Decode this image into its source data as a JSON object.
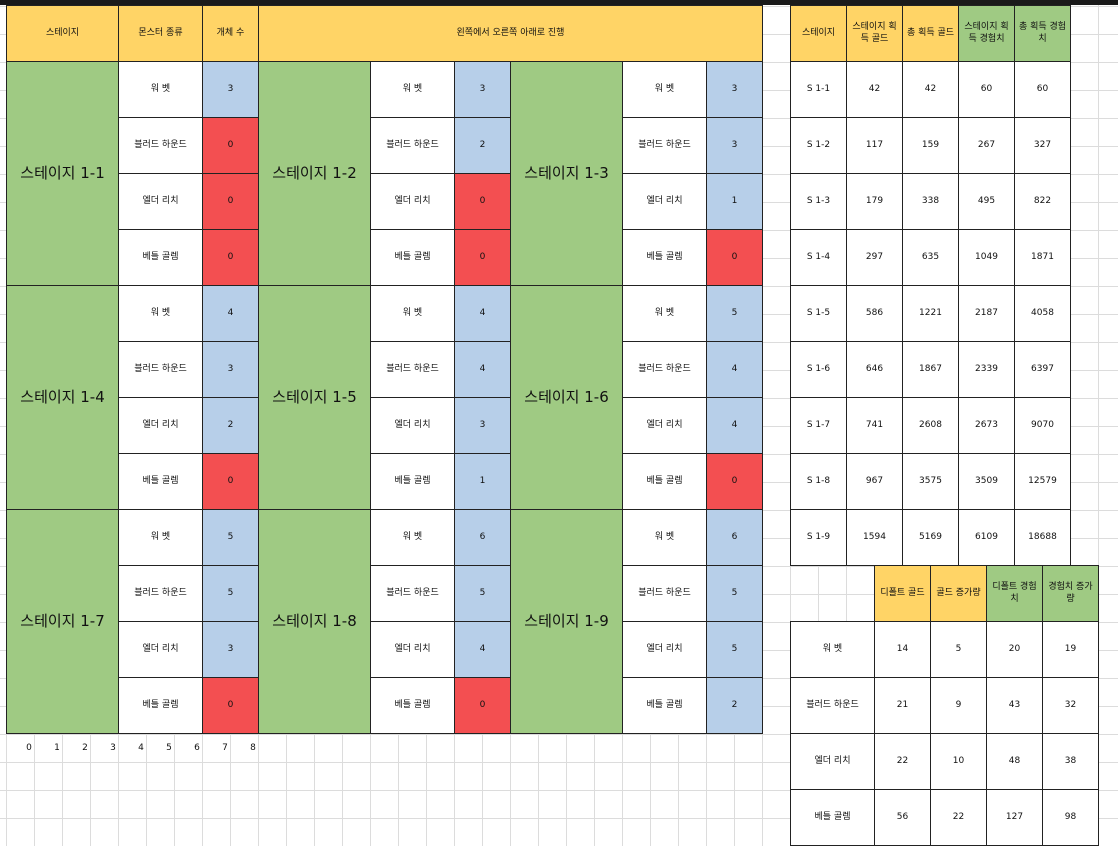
{
  "header": {
    "stage": "스테이지",
    "monster_type": "몬스터 종류",
    "count": "개체 수",
    "progression": "왼쪽에서 오른쪽 아래로 진행"
  },
  "stages": [
    {
      "name": "스테이지 1-1",
      "counts": [
        3,
        0,
        0,
        0
      ]
    },
    {
      "name": "스테이지 1-2",
      "counts": [
        3,
        2,
        0,
        0
      ]
    },
    {
      "name": "스테이지 1-3",
      "counts": [
        3,
        3,
        1,
        0
      ]
    },
    {
      "name": "스테이지 1-4",
      "counts": [
        4,
        3,
        2,
        0
      ]
    },
    {
      "name": "스테이지 1-5",
      "counts": [
        4,
        4,
        3,
        1
      ]
    },
    {
      "name": "스테이지 1-6",
      "counts": [
        5,
        4,
        4,
        0
      ]
    },
    {
      "name": "스테이지 1-7",
      "counts": [
        5,
        5,
        3,
        0
      ]
    },
    {
      "name": "스테이지 1-8",
      "counts": [
        6,
        5,
        4,
        0
      ]
    },
    {
      "name": "스테이지 1-9",
      "counts": [
        6,
        5,
        5,
        2
      ]
    }
  ],
  "monsters": [
    "워 벳",
    "블러드 하운드",
    "엘더 리치",
    "베틀 골렘"
  ],
  "column_numbers": [
    "0",
    "1",
    "2",
    "3",
    "4",
    "5",
    "6",
    "7",
    "8"
  ],
  "summary": {
    "headers": [
      "스테이지",
      "스테이지 획득 골드",
      "총 획득 골드",
      "스테이지 획득 경험치",
      "총 획득 경험치"
    ],
    "rows": [
      [
        "S 1-1",
        "42",
        "42",
        "60",
        "60"
      ],
      [
        "S 1-2",
        "117",
        "159",
        "267",
        "327"
      ],
      [
        "S 1-3",
        "179",
        "338",
        "495",
        "822"
      ],
      [
        "S 1-4",
        "297",
        "635",
        "1049",
        "1871"
      ],
      [
        "S 1-5",
        "586",
        "1221",
        "2187",
        "4058"
      ],
      [
        "S 1-6",
        "646",
        "1867",
        "2339",
        "6397"
      ],
      [
        "S 1-7",
        "741",
        "2608",
        "2673",
        "9070"
      ],
      [
        "S 1-8",
        "967",
        "3575",
        "3509",
        "12579"
      ],
      [
        "S 1-9",
        "1594",
        "5169",
        "6109",
        "18688"
      ]
    ]
  },
  "rewards": {
    "headers": [
      "디폴트 골드",
      "골드 증가량",
      "디폴트 경험치",
      "경험치 증가량"
    ],
    "rows": [
      [
        "워 벳",
        "14",
        "5",
        "20",
        "19"
      ],
      [
        "블러드 하운드",
        "21",
        "9",
        "43",
        "32"
      ],
      [
        "엘더 리치",
        "22",
        "10",
        "48",
        "38"
      ],
      [
        "베틀 골렘",
        "56",
        "22",
        "127",
        "98"
      ]
    ]
  },
  "colors": {
    "header_yellow": "#ffd466",
    "stage_green": "#9fca83",
    "count_blue": "#b7cfe9",
    "zero_red": "#f34f51"
  }
}
